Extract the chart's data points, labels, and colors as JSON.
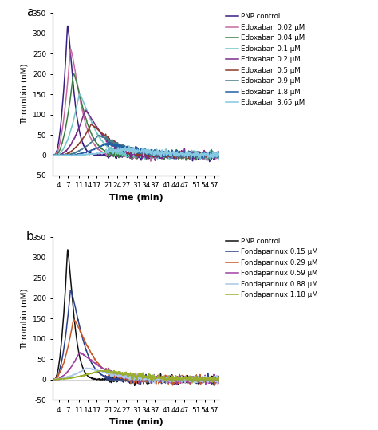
{
  "panel_a": {
    "title_label": "a",
    "ylabel": "Thrombin (nM)",
    "xlabel": "Time (min)",
    "ylim": [
      -50,
      350
    ],
    "yticks": [
      -50,
      0,
      50,
      100,
      150,
      200,
      250,
      300,
      350
    ],
    "xticks": [
      4,
      7,
      11,
      14,
      17,
      21,
      24,
      27,
      31,
      34,
      37,
      41,
      44,
      47,
      51,
      54,
      57
    ],
    "xlim": [
      2,
      59
    ],
    "series": [
      {
        "label": "PNP control",
        "color": "#3b1e82",
        "peak": 320,
        "tpeak": 7.0,
        "rise": 1.8,
        "fall": 2.8,
        "noise": 4
      },
      {
        "label": "Edoxaban 0.02 μM",
        "color": "#c8699e",
        "peak": 262,
        "tpeak": 8.0,
        "rise": 2.2,
        "fall": 4.5,
        "noise": 4
      },
      {
        "label": "Edoxaban 0.04 μM",
        "color": "#3a7d44",
        "peak": 202,
        "tpeak": 9.0,
        "rise": 2.5,
        "fall": 5.0,
        "noise": 4
      },
      {
        "label": "Edoxaban 0.1 μM",
        "color": "#6ec6c6",
        "peak": 150,
        "tpeak": 11.0,
        "rise": 3.2,
        "fall": 6.0,
        "noise": 4
      },
      {
        "label": "Edoxaban 0.2 μM",
        "color": "#7b2d8b",
        "peak": 110,
        "tpeak": 13.0,
        "rise": 3.8,
        "fall": 7.0,
        "noise": 4
      },
      {
        "label": "Edoxaban 0.5 μM",
        "color": "#8b3a2a",
        "peak": 75,
        "tpeak": 15.0,
        "rise": 4.2,
        "fall": 8.5,
        "noise": 3
      },
      {
        "label": "Edoxaban 0.9 μM",
        "color": "#4a7c8e",
        "peak": 48,
        "tpeak": 17.5,
        "rise": 5.0,
        "fall": 10.0,
        "noise": 3
      },
      {
        "label": "Edoxaban 1.8 μM",
        "color": "#2660a4",
        "peak": 28,
        "tpeak": 20.0,
        "rise": 5.5,
        "fall": 12.0,
        "noise": 3
      },
      {
        "label": "Edoxaban 3.65 μM",
        "color": "#85c8e0",
        "peak": 14,
        "tpeak": 25.0,
        "rise": 7.0,
        "fall": 16.0,
        "noise": 3
      }
    ]
  },
  "panel_b": {
    "title_label": "b",
    "ylabel": "Thrombin (nM)",
    "xlabel": "Time (min)",
    "ylim": [
      -50,
      350
    ],
    "yticks": [
      -50,
      0,
      50,
      100,
      150,
      200,
      250,
      300,
      350
    ],
    "xticks": [
      4,
      7,
      11,
      14,
      17,
      21,
      24,
      27,
      31,
      34,
      37,
      41,
      44,
      47,
      51,
      54,
      57
    ],
    "xlim": [
      2,
      59
    ],
    "series": [
      {
        "label": "PNP control",
        "color": "#111111",
        "peak": 320,
        "tpeak": 7.0,
        "rise": 1.8,
        "fall": 2.8,
        "noise": 4
      },
      {
        "label": "Fondaparinux 0.15 μM",
        "color": "#2b3f8c",
        "peak": 220,
        "tpeak": 8.0,
        "rise": 2.2,
        "fall": 5.0,
        "noise": 4
      },
      {
        "label": "Fondaparinux 0.29 μM",
        "color": "#c85a2a",
        "peak": 148,
        "tpeak": 9.0,
        "rise": 2.8,
        "fall": 7.0,
        "noise": 4
      },
      {
        "label": "Fondaparinux 0.59 μM",
        "color": "#a040a0",
        "peak": 66,
        "tpeak": 11.0,
        "rise": 3.5,
        "fall": 9.0,
        "noise": 4
      },
      {
        "label": "Fondaparinux 0.88 μM",
        "color": "#aac8e8",
        "peak": 28,
        "tpeak": 13.5,
        "rise": 5.0,
        "fall": 11.0,
        "noise": 3
      },
      {
        "label": "Fondaparinux 1.18 μM",
        "color": "#9aaf30",
        "peak": 22,
        "tpeak": 18.0,
        "rise": 7.0,
        "fall": 14.0,
        "noise": 3
      }
    ]
  }
}
